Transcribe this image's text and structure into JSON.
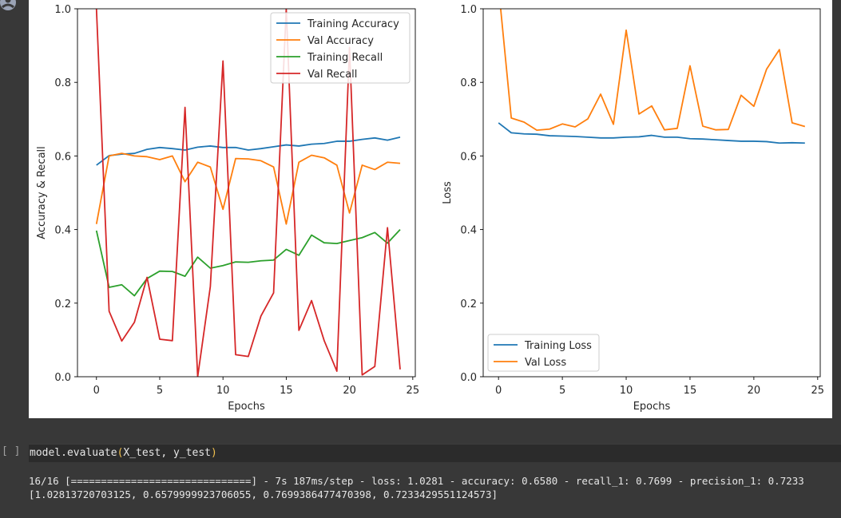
{
  "colors": {
    "training_accuracy": "#1f77b4",
    "val_accuracy": "#ff7f0e",
    "training_recall": "#2ca02c",
    "val_recall": "#d62728",
    "dark_background": "#383838",
    "code_cell_bg": "#2b2b2b"
  },
  "icons": {
    "avatar": "user-avatar-icon"
  },
  "cell": {
    "run_bracket": "[ ]",
    "code_func": "model.evaluate",
    "code_args": "X_test, y_test",
    "output_line1": "16/16 [==============================] - 7s 187ms/step - loss: 1.0281 - accuracy: 0.6580 - recall_1: 0.7699 - precision_1: 0.7233",
    "output_line2": "[1.02813720703125, 0.6579999923706055, 0.7699386477470398, 0.7233429551124573]"
  },
  "chart_data": [
    {
      "type": "line",
      "xlabel": "Epochs",
      "ylabel": "Accuracy & Recall",
      "xlim": [
        -1.5,
        25.2
      ],
      "ylim": [
        0.0,
        1.0
      ],
      "xticks": [
        "0",
        "5",
        "10",
        "15",
        "20",
        "25"
      ],
      "yticks": [
        "0.0",
        "0.2",
        "0.4",
        "0.6",
        "0.8",
        "1.0"
      ],
      "legend": "top-right",
      "x": [
        0,
        1,
        2,
        3,
        4,
        5,
        6,
        7,
        8,
        9,
        10,
        11,
        12,
        13,
        14,
        15,
        16,
        17,
        18,
        19,
        20,
        21,
        22,
        23,
        24
      ],
      "series": [
        {
          "name": "Training Accuracy",
          "color": "#1f77b4",
          "values": [
            0.575,
            0.601,
            0.605,
            0.607,
            0.618,
            0.623,
            0.62,
            0.616,
            0.624,
            0.627,
            0.623,
            0.623,
            0.616,
            0.62,
            0.625,
            0.63,
            0.627,
            0.632,
            0.634,
            0.64,
            0.64,
            0.645,
            0.649,
            0.643,
            0.651
          ]
        },
        {
          "name": "Val Accuracy",
          "color": "#ff7f0e",
          "values": [
            0.415,
            0.6,
            0.607,
            0.6,
            0.598,
            0.59,
            0.6,
            0.53,
            0.583,
            0.57,
            0.455,
            0.593,
            0.592,
            0.587,
            0.57,
            0.415,
            0.583,
            0.602,
            0.595,
            0.575,
            0.445,
            0.575,
            0.563,
            0.583,
            0.58
          ]
        },
        {
          "name": "Training Recall",
          "color": "#2ca02c",
          "values": [
            0.397,
            0.243,
            0.25,
            0.22,
            0.267,
            0.287,
            0.286,
            0.273,
            0.325,
            0.295,
            0.302,
            0.312,
            0.311,
            0.315,
            0.317,
            0.346,
            0.33,
            0.385,
            0.364,
            0.362,
            0.37,
            0.378,
            0.392,
            0.363,
            0.4
          ]
        },
        {
          "name": "Val Recall",
          "color": "#d62728",
          "values": [
            1.0,
            0.178,
            0.097,
            0.148,
            0.27,
            0.102,
            0.098,
            0.732,
            0.0,
            0.245,
            0.858,
            0.06,
            0.055,
            0.165,
            0.228,
            1.0,
            0.126,
            0.207,
            0.098,
            0.015,
            0.895,
            0.005,
            0.028,
            0.405,
            0.02
          ]
        }
      ]
    },
    {
      "type": "line",
      "xlabel": "Epochs",
      "ylabel": "Loss",
      "xlim": [
        -1.2,
        25.2
      ],
      "ylim": [
        0.0,
        1.0
      ],
      "xticks": [
        "0",
        "5",
        "10",
        "15",
        "20",
        "25"
      ],
      "yticks": [
        "0.0",
        "0.2",
        "0.4",
        "0.6",
        "0.8",
        "1.0"
      ],
      "legend": "bottom-left",
      "x": [
        0,
        1,
        2,
        3,
        4,
        5,
        6,
        7,
        8,
        9,
        10,
        11,
        12,
        13,
        14,
        15,
        16,
        17,
        18,
        19,
        20,
        21,
        22,
        23,
        24
      ],
      "series": [
        {
          "name": "Training Loss",
          "color": "#1f77b4",
          "values": [
            0.69,
            0.663,
            0.66,
            0.659,
            0.655,
            0.654,
            0.653,
            0.651,
            0.649,
            0.649,
            0.651,
            0.652,
            0.656,
            0.651,
            0.651,
            0.647,
            0.646,
            0.644,
            0.642,
            0.64,
            0.64,
            0.639,
            0.635,
            0.636,
            0.635
          ]
        },
        {
          "name": "Val Loss",
          "color": "#ff7f0e",
          "values": [
            1.06,
            0.703,
            0.692,
            0.67,
            0.673,
            0.687,
            0.679,
            0.701,
            0.768,
            0.686,
            0.942,
            0.714,
            0.736,
            0.671,
            0.675,
            0.845,
            0.681,
            0.671,
            0.672,
            0.765,
            0.735,
            0.836,
            0.889,
            0.69,
            0.68
          ]
        }
      ]
    }
  ]
}
